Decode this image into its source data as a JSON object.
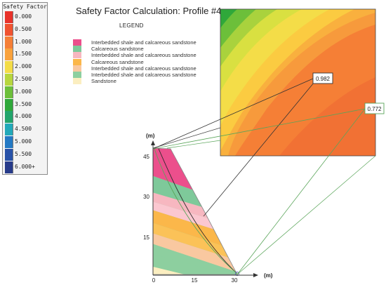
{
  "title": "Safety Factor Calculation: Profile #4",
  "scale": {
    "title": "Safety Factor",
    "entries": [
      {
        "label": "0.000",
        "color": "#e8322a"
      },
      {
        "label": "0.500",
        "color": "#f0522f"
      },
      {
        "label": "1.000",
        "color": "#f57f36"
      },
      {
        "label": "1.500",
        "color": "#f9a23c"
      },
      {
        "label": "2.000",
        "color": "#f4dc46"
      },
      {
        "label": "2.500",
        "color": "#b7d63e"
      },
      {
        "label": "3.000",
        "color": "#6cbf3a"
      },
      {
        "label": "3.500",
        "color": "#2fa83a"
      },
      {
        "label": "4.000",
        "color": "#22a46b"
      },
      {
        "label": "4.500",
        "color": "#22a9b9"
      },
      {
        "label": "5.000",
        "color": "#2379c4"
      },
      {
        "label": "5.500",
        "color": "#2852a8"
      },
      {
        "label": "6.000+",
        "color": "#273b8a"
      }
    ]
  },
  "legend": {
    "title": "LEGEND",
    "items": [
      {
        "label": "Interbedded shale and calcareous sandstone",
        "color": "#ec4f8c"
      },
      {
        "label": "Calcareous sandstone",
        "color": "#7ec99a"
      },
      {
        "label": "Interbedded shale and calcareous sandstone",
        "color": "#f7b7c0"
      },
      {
        "label": "Calcareous sandstone",
        "color": "#fbb74a"
      },
      {
        "label": "Interbedded shale and calcareous sandstone",
        "color": "#f9c8a0"
      },
      {
        "label": "Interbedded shale and calcareous sandstone",
        "color": "#8dcf9f"
      },
      {
        "label": "Sandstone",
        "color": "#fbeec0"
      }
    ]
  },
  "profile": {
    "y_axis_unit": "(m)",
    "x_axis_unit": "(m)",
    "x_ticks": [
      "0",
      "15",
      "30"
    ],
    "y_ticks": [
      "45",
      "30",
      "15"
    ],
    "x_range": [
      0,
      30
    ],
    "y_range": [
      0,
      45
    ]
  },
  "callouts": [
    {
      "value": "0.982",
      "color": "#333333"
    },
    {
      "value": "0.772",
      "color": "#5aa55a"
    }
  ]
}
